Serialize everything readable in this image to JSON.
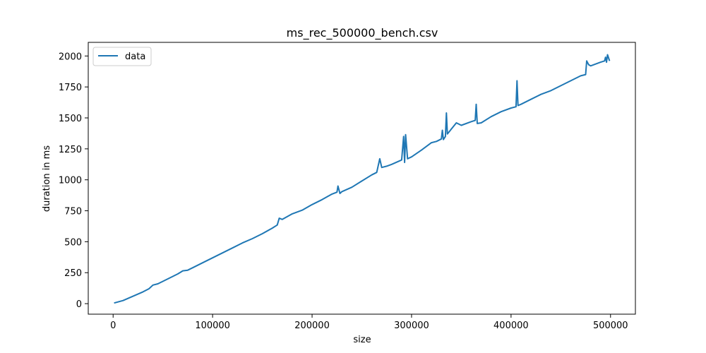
{
  "chart_data": {
    "type": "line",
    "title": "ms_rec_500000_bench.csv",
    "xlabel": "size",
    "ylabel": "duration in ms",
    "xlim": [
      -25000,
      525000
    ],
    "ylim": [
      -85,
      2110
    ],
    "xticks": [
      0,
      100000,
      200000,
      300000,
      400000,
      500000
    ],
    "xtick_labels": [
      "0",
      "100000",
      "200000",
      "300000",
      "400000",
      "500000"
    ],
    "yticks": [
      0,
      250,
      500,
      750,
      1000,
      1250,
      1500,
      1750,
      2000
    ],
    "ytick_labels": [
      "0",
      "250",
      "500",
      "750",
      "1000",
      "1250",
      "1500",
      "1750",
      "2000"
    ],
    "grid": false,
    "legend_position": "upper-left",
    "series": [
      {
        "name": "data",
        "color": "#1f77b4",
        "x": [
          1000,
          10000,
          20000,
          30000,
          36000,
          40000,
          45000,
          50000,
          60000,
          65000,
          70000,
          75000,
          80000,
          90000,
          100000,
          110000,
          120000,
          130000,
          140000,
          150000,
          160000,
          165000,
          167000,
          170000,
          180000,
          190000,
          200000,
          210000,
          220000,
          225000,
          226000,
          228000,
          230000,
          240000,
          250000,
          260000,
          265000,
          268000,
          270000,
          275000,
          280000,
          290000,
          292000,
          293000,
          294000,
          296000,
          300000,
          310000,
          320000,
          325000,
          330000,
          331000,
          332000,
          334000,
          335000,
          336000,
          340000,
          345000,
          350000,
          360000,
          364000,
          365000,
          366000,
          370000,
          380000,
          390000,
          400000,
          405000,
          406000,
          407000,
          410000,
          420000,
          430000,
          440000,
          450000,
          460000,
          470000,
          475000,
          476000,
          478000,
          480000,
          490000,
          494000,
          495000,
          496000,
          497000,
          499000
        ],
        "y": [
          5,
          25,
          60,
          95,
          120,
          150,
          160,
          180,
          220,
          240,
          265,
          270,
          290,
          330,
          370,
          410,
          450,
          490,
          525,
          565,
          610,
          635,
          690,
          680,
          725,
          755,
          800,
          840,
          885,
          900,
          950,
          890,
          905,
          940,
          990,
          1040,
          1060,
          1170,
          1100,
          1110,
          1125,
          1160,
          1350,
          1140,
          1365,
          1170,
          1185,
          1240,
          1300,
          1310,
          1330,
          1400,
          1325,
          1350,
          1540,
          1370,
          1410,
          1460,
          1440,
          1470,
          1480,
          1610,
          1455,
          1460,
          1510,
          1550,
          1580,
          1590,
          1800,
          1600,
          1610,
          1650,
          1690,
          1720,
          1760,
          1800,
          1840,
          1850,
          1960,
          1930,
          1920,
          1950,
          1960,
          1990,
          1950,
          2010,
          1960
        ]
      }
    ]
  }
}
